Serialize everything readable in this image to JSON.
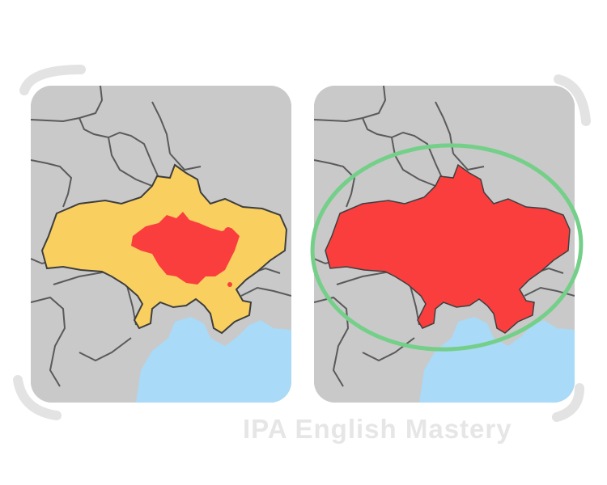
{
  "watermark": "IPA English Mastery",
  "maps": [
    {
      "id": "left",
      "highlight": "size-comparison-overlay"
    },
    {
      "id": "right",
      "highlight": "circled-country"
    }
  ],
  "colors": {
    "land": "#c9c9c9",
    "border": "#5a5a5a",
    "sea": "#a9daf7",
    "overlay_yellow": "#f9d05f",
    "country_red": "#fa3e3e",
    "circle_green": "#74cf88",
    "frame_grey": "#dedede"
  }
}
